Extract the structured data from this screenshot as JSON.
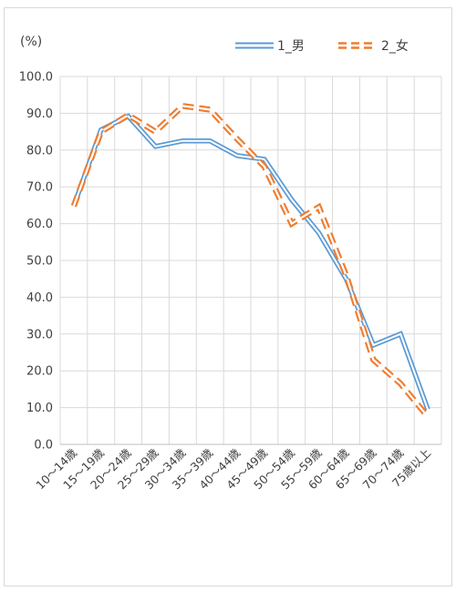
{
  "chart_data": {
    "type": "line",
    "unit_label": "(%)",
    "categories": [
      "10～14歳",
      "15～19歳",
      "20～24歳",
      "25～29歳",
      "30～34歳",
      "35～39歳",
      "40～44歳",
      "45～49歳",
      "50～54歳",
      "55～59歳",
      "60～64歳",
      "65～69歳",
      "70～74歳",
      "75歳以上"
    ],
    "ylim": [
      0,
      100
    ],
    "yticks": [
      "0.0",
      "10.0",
      "20.0",
      "30.0",
      "40.0",
      "50.0",
      "60.0",
      "70.0",
      "80.0",
      "90.0",
      "100.0"
    ],
    "grid": true,
    "legend_position": "top-right",
    "series": [
      {
        "name": "1_男",
        "color": "#5b9bd5",
        "style": "double-solid",
        "values": [
          64.8,
          85.5,
          89.2,
          81.0,
          82.5,
          82.5,
          78.5,
          77.5,
          66.5,
          57.5,
          45.0,
          27.0,
          30.0,
          9.5
        ]
      },
      {
        "name": "2_女",
        "color": "#ed7d31",
        "style": "double-dashed",
        "values": [
          64.8,
          85.0,
          89.5,
          85.0,
          92.0,
          91.0,
          83.0,
          75.5,
          60.0,
          64.5,
          46.0,
          23.0,
          16.5,
          7.5
        ]
      }
    ]
  }
}
